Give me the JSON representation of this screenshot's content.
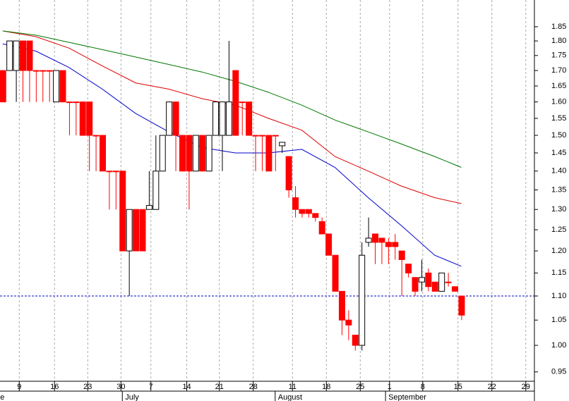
{
  "chart_data": {
    "type": "candlestick",
    "log_scale": true,
    "open": [
      1.7,
      1.7,
      1.7,
      1.8,
      1.8,
      1.7,
      1.7,
      1.7,
      1.6,
      1.7,
      1.6,
      1.6,
      1.6,
      1.6,
      1.5,
      1.5,
      1.4,
      1.4,
      1.4,
      1.2,
      1.3,
      1.3,
      1.3,
      1.3,
      1.4,
      1.5,
      1.6,
      1.5,
      1.5,
      1.4,
      1.5,
      1.4,
      1.5,
      1.5,
      1.5,
      1.7,
      1.6,
      1.6,
      1.5,
      1.5,
      1.5,
      1.5,
      1.47,
      1.44,
      1.33,
      1.3,
      1.3,
      1.29,
      1.27,
      1.24,
      1.19,
      1.11,
      1.05,
      1.02,
      1.0,
      1.22,
      1.24,
      1.23,
      1.22,
      1.22,
      1.2,
      1.17,
      1.14,
      1.13,
      1.15,
      1.13,
      1.11,
      1.13,
      1.12,
      1.1
    ],
    "high": [
      1.7,
      1.8,
      1.8,
      1.8,
      1.8,
      1.7,
      1.7,
      1.7,
      1.7,
      1.7,
      1.6,
      1.6,
      1.6,
      1.6,
      1.5,
      1.5,
      1.4,
      1.4,
      1.4,
      1.3,
      1.3,
      1.3,
      1.4,
      1.5,
      1.5,
      1.6,
      1.6,
      1.5,
      1.5,
      1.5,
      1.5,
      1.5,
      1.6,
      1.6,
      1.8,
      1.7,
      1.6,
      1.6,
      1.5,
      1.5,
      1.5,
      1.5,
      1.48,
      1.44,
      1.36,
      1.3,
      1.3,
      1.29,
      1.28,
      1.24,
      1.19,
      1.11,
      1.07,
      1.02,
      1.22,
      1.28,
      1.24,
      1.23,
      1.23,
      1.24,
      1.2,
      1.17,
      1.14,
      1.18,
      1.16,
      1.13,
      1.15,
      1.15,
      1.12,
      1.1
    ],
    "low": [
      1.6,
      1.7,
      1.6,
      1.6,
      1.6,
      1.6,
      1.6,
      1.6,
      1.6,
      1.6,
      1.5,
      1.5,
      1.5,
      1.4,
      1.4,
      1.4,
      1.3,
      1.3,
      1.2,
      1.1,
      1.2,
      1.2,
      1.3,
      1.3,
      1.4,
      1.5,
      1.4,
      1.4,
      1.3,
      1.4,
      1.4,
      1.4,
      1.5,
      1.4,
      1.5,
      1.5,
      1.5,
      1.5,
      1.4,
      1.4,
      1.4,
      1.4,
      1.45,
      1.33,
      1.28,
      1.28,
      1.28,
      1.27,
      1.24,
      1.19,
      1.11,
      1.02,
      1.01,
      0.99,
      0.99,
      1.21,
      1.17,
      1.17,
      1.17,
      1.18,
      1.1,
      1.14,
      1.1,
      1.11,
      1.11,
      1.11,
      1.11,
      1.12,
      1.11,
      1.05
    ],
    "close": [
      1.6,
      1.8,
      1.8,
      1.7,
      1.7,
      1.7,
      1.7,
      1.7,
      1.7,
      1.6,
      1.6,
      1.6,
      1.5,
      1.5,
      1.5,
      1.4,
      1.4,
      1.4,
      1.2,
      1.3,
      1.2,
      1.2,
      1.31,
      1.4,
      1.5,
      1.6,
      1.5,
      1.4,
      1.4,
      1.5,
      1.4,
      1.5,
      1.6,
      1.6,
      1.6,
      1.5,
      1.6,
      1.5,
      1.5,
      1.5,
      1.4,
      1.5,
      1.48,
      1.35,
      1.3,
      1.29,
      1.29,
      1.28,
      1.24,
      1.19,
      1.11,
      1.05,
      1.04,
      1.0,
      1.19,
      1.23,
      1.22,
      1.22,
      1.21,
      1.21,
      1.18,
      1.15,
      1.11,
      1.14,
      1.12,
      1.11,
      1.15,
      1.13,
      1.11,
      1.06
    ],
    "up_color": "#ffffff",
    "down_color": "#ff0000",
    "ma_x": [
      0,
      5,
      10,
      15,
      20,
      25,
      30,
      35,
      40,
      45,
      50,
      55,
      60,
      65,
      69
    ],
    "moving_averages": [
      {
        "color": "#0000cc",
        "values": [
          1.79,
          1.765,
          1.71,
          1.64,
          1.565,
          1.51,
          1.465,
          1.45,
          1.45,
          1.46,
          1.41,
          1.33,
          1.26,
          1.19,
          1.165
        ]
      },
      {
        "color": "#dd0000",
        "values": [
          1.835,
          1.815,
          1.775,
          1.715,
          1.66,
          1.64,
          1.61,
          1.59,
          1.55,
          1.515,
          1.44,
          1.4,
          1.36,
          1.33,
          1.315
        ]
      },
      {
        "color": "#007700",
        "values": [
          1.835,
          1.82,
          1.795,
          1.77,
          1.745,
          1.72,
          1.695,
          1.665,
          1.63,
          1.59,
          1.545,
          1.51,
          1.475,
          1.44,
          1.41
        ]
      }
    ],
    "reference_line": {
      "value": 1.1,
      "color": "#0000cc"
    },
    "xlim": [
      -0.4,
      80.0
    ],
    "xticks": [
      {
        "value": 2.5,
        "label": "9"
      },
      {
        "value": 7.8,
        "label": "16"
      },
      {
        "value": 12.8,
        "label": "23"
      },
      {
        "value": 17.8,
        "label": "30"
      },
      {
        "value": 22.3,
        "label": "7"
      },
      {
        "value": 27.7,
        "label": "14"
      },
      {
        "value": 32.6,
        "label": "21"
      },
      {
        "value": 37.7,
        "label": "28"
      },
      {
        "value": 43.6,
        "label": "11"
      },
      {
        "value": 48.7,
        "label": "18"
      },
      {
        "value": 53.8,
        "label": "25"
      },
      {
        "value": 58.2,
        "label": "1"
      },
      {
        "value": 63.2,
        "label": "8"
      },
      {
        "value": 68.5,
        "label": "15"
      },
      {
        "value": 73.6,
        "label": "22"
      },
      {
        "value": 78.7,
        "label": "29"
      }
    ],
    "month_labels": [
      {
        "value": -0.8,
        "label": "e"
      },
      {
        "value": 18.0,
        "label": "July"
      },
      {
        "value": 41.0,
        "label": "August"
      },
      {
        "value": 57.6,
        "label": "September"
      }
    ],
    "ylim": [
      0.933,
      1.948
    ],
    "yticks": [
      0.95,
      {
        "value": 1.0,
        "label": "1.00"
      },
      1.05,
      {
        "value": 1.1,
        "label": "1.10"
      },
      1.15,
      {
        "value": 1.2,
        "label": "1.20"
      },
      1.25,
      {
        "value": 1.3,
        "label": "1.30"
      },
      1.35,
      {
        "value": 1.4,
        "label": "1.40"
      },
      1.45,
      {
        "value": 1.5,
        "label": "1.50"
      },
      1.55,
      {
        "value": 1.6,
        "label": "1.60"
      },
      1.65,
      {
        "value": 1.7,
        "label": "1.70"
      },
      1.75,
      {
        "value": 1.8,
        "label": "1.80"
      },
      1.85
    ],
    "grid": true
  }
}
